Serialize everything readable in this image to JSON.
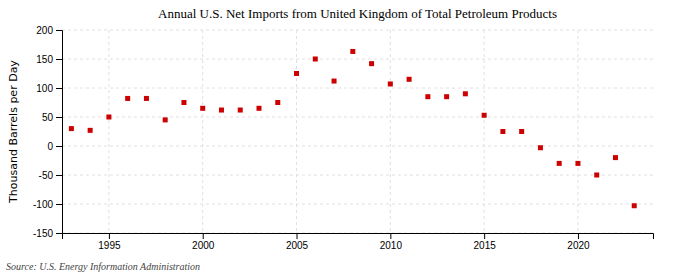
{
  "chart_data": {
    "type": "scatter",
    "title": "Annual U.S. Net Imports from United Kingdom of Total Petroleum Products",
    "ylabel": "Thousand Barrels per Day",
    "source": "Source: U.S. Energy Information Administration",
    "x": [
      1993,
      1994,
      1995,
      1996,
      1997,
      1998,
      1999,
      2000,
      2001,
      2002,
      2003,
      2004,
      2005,
      2006,
      2007,
      2008,
      2009,
      2010,
      2011,
      2012,
      2013,
      2014,
      2015,
      2016,
      2017,
      2018,
      2019,
      2020,
      2021,
      2022,
      2023
    ],
    "values": [
      30,
      27,
      50,
      82,
      82,
      45,
      75,
      65,
      62,
      62,
      65,
      75,
      125,
      150,
      112,
      163,
      142,
      107,
      115,
      85,
      85,
      90,
      53,
      25,
      25,
      -3,
      -30,
      -30,
      -50,
      -20,
      -103
    ],
    "color": "#cc0000",
    "marker": "square",
    "xlim": [
      1992.5,
      2024
    ],
    "ylim": [
      -150,
      200
    ],
    "xticks": [
      1995,
      2000,
      2005,
      2010,
      2015,
      2020
    ],
    "yticks": [
      -150,
      -100,
      -50,
      0,
      50,
      100,
      150,
      200
    ],
    "grid": true
  }
}
